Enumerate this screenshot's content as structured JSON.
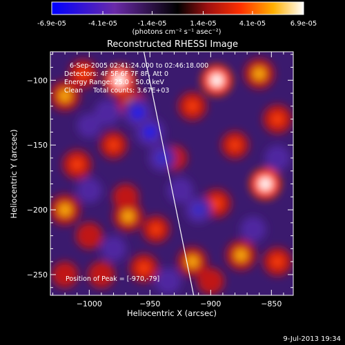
{
  "colorbar": {
    "tick_labels": [
      "-6.9e-05",
      "-4.1e-05",
      "-1.4e-05",
      "1.4e-05",
      "4.1e-05",
      "6.9e-05"
    ],
    "tick_values": [
      -6.9e-05,
      -4.1e-05,
      -1.4e-05,
      1.4e-05,
      4.1e-05,
      6.9e-05
    ],
    "range": [
      -6.9e-05,
      6.9e-05
    ],
    "units_label": "(photons cm⁻² s⁻¹ asec⁻²)"
  },
  "chart_data": {
    "type": "heatmap",
    "title": "Reconstructed RHESSI Image",
    "xlabel": "Heliocentric X (arcsec)",
    "ylabel": "Heliocentric Y (arcsec)",
    "xlim": [
      -1032,
      -832
    ],
    "ylim": [
      -266,
      -78
    ],
    "x_ticks": [
      -1000,
      -950,
      -900,
      -850
    ],
    "x_tick_labels": [
      "−1000",
      "−950",
      "−900",
      "−850"
    ],
    "y_ticks": [
      -100,
      -150,
      -200,
      -250
    ],
    "y_tick_labels": [
      "−100",
      "−150",
      "−200",
      "−250"
    ],
    "info_lines": [
      "6-Sep-2005 02:41:24.000 to 02:46:18.000",
      "Detectors: 4F 5F 6F 7F 8F, Att 0",
      "Energy Range: 25.0 - 50.0 keV",
      "Clean     Total counts: 3.67E+03"
    ],
    "peak_text": "Position of Peak = [-970,-79]",
    "peak_position": [
      -970,
      -79
    ],
    "limb_line": [
      [
        -955,
        -78
      ],
      [
        -914,
        -266
      ]
    ],
    "blobs": [
      {
        "x": -1020,
        "y": -112,
        "v": 0.85
      },
      {
        "x": -1005,
        "y": -95,
        "v": 0.7
      },
      {
        "x": -975,
        "y": -100,
        "v": 0.95
      },
      {
        "x": -965,
        "y": -118,
        "v": 0.8
      },
      {
        "x": -980,
        "y": -150,
        "v": 0.6
      },
      {
        "x": -1010,
        "y": -165,
        "v": 0.75
      },
      {
        "x": -1020,
        "y": -200,
        "v": 0.9
      },
      {
        "x": -1000,
        "y": -220,
        "v": 0.55
      },
      {
        "x": -970,
        "y": -190,
        "v": 0.5
      },
      {
        "x": -968,
        "y": -205,
        "v": 0.85
      },
      {
        "x": -955,
        "y": -245,
        "v": 0.7
      },
      {
        "x": -945,
        "y": -215,
        "v": 0.6
      },
      {
        "x": -930,
        "y": -160,
        "v": 0.45
      },
      {
        "x": -915,
        "y": -120,
        "v": 0.7
      },
      {
        "x": -895,
        "y": -100,
        "v": 0.95
      },
      {
        "x": -860,
        "y": -95,
        "v": 0.85
      },
      {
        "x": -845,
        "y": -130,
        "v": 0.75
      },
      {
        "x": -880,
        "y": -150,
        "v": 0.6
      },
      {
        "x": -855,
        "y": -180,
        "v": 0.95
      },
      {
        "x": -895,
        "y": -195,
        "v": 0.7
      },
      {
        "x": -915,
        "y": -240,
        "v": 0.8
      },
      {
        "x": -875,
        "y": -235,
        "v": 0.85
      },
      {
        "x": -845,
        "y": -240,
        "v": 0.7
      },
      {
        "x": -900,
        "y": -255,
        "v": 0.55
      },
      {
        "x": -1020,
        "y": -250,
        "v": 0.5
      },
      {
        "x": -990,
        "y": -250,
        "v": 0.55
      },
      {
        "x": -950,
        "y": -140,
        "v": -0.8
      },
      {
        "x": -940,
        "y": -160,
        "v": -0.6
      },
      {
        "x": -960,
        "y": -125,
        "v": -0.85
      },
      {
        "x": -985,
        "y": -125,
        "v": -0.5
      },
      {
        "x": -910,
        "y": -200,
        "v": -0.55
      },
      {
        "x": -925,
        "y": -185,
        "v": -0.5
      },
      {
        "x": -1000,
        "y": -185,
        "v": -0.45
      },
      {
        "x": -935,
        "y": -255,
        "v": -0.5
      },
      {
        "x": -865,
        "y": -215,
        "v": -0.45
      },
      {
        "x": -845,
        "y": -160,
        "v": -0.45
      },
      {
        "x": -1000,
        "y": -135,
        "v": -0.35
      },
      {
        "x": -980,
        "y": -230,
        "v": -0.45
      }
    ]
  },
  "footer": {
    "date": "9-Jul-2013 19:34"
  }
}
